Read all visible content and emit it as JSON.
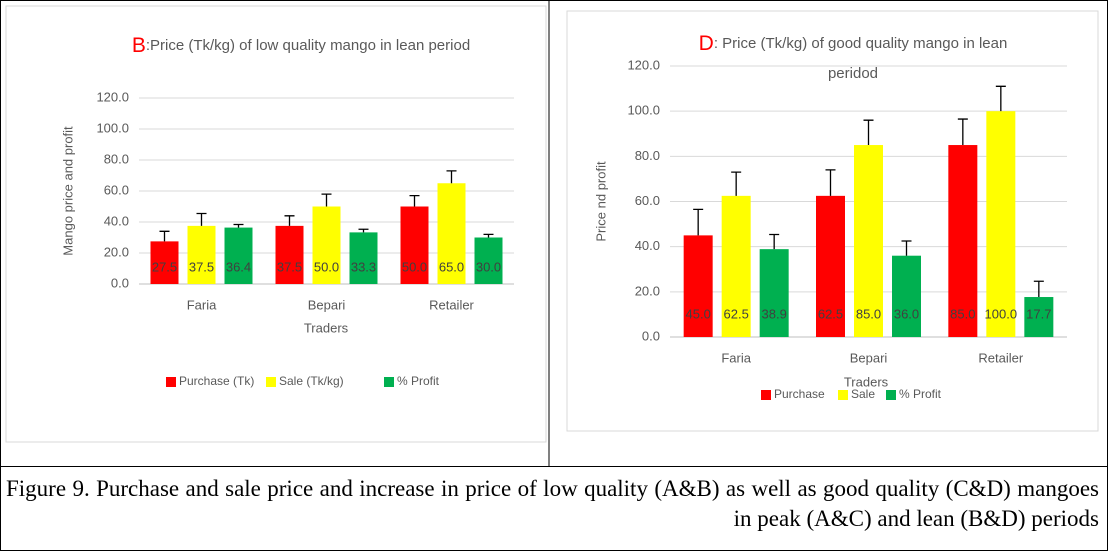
{
  "chart_data": [
    {
      "type": "bar",
      "title_letter": "B",
      "title": ":Price  (Tk/kg) of low quality mango in lean period",
      "y_label": "Mango price and profit",
      "x_label": "Traders",
      "categories": [
        "Faria",
        "Bepari",
        "Retailer"
      ],
      "series": [
        {
          "name": "Purchase (Tk)",
          "color": "#ff0000",
          "values": [
            27.5,
            37.5,
            50
          ],
          "value_labels": [
            "27.5",
            "37.5",
            "50.0"
          ],
          "errors": [
            6.5,
            6.5,
            7
          ]
        },
        {
          "name": "Sale (Tk/kg)",
          "color": "#ffff00",
          "values": [
            37.5,
            50,
            65
          ],
          "value_labels": [
            "37.5",
            "50.0",
            "65.0"
          ],
          "errors": [
            8,
            8,
            8
          ]
        },
        {
          "name": "% Profit",
          "color": "#00b050",
          "values": [
            36.4,
            33.3,
            30
          ],
          "value_labels": [
            "36.4",
            "33.3",
            "30.0"
          ],
          "errors": [
            2,
            2,
            2
          ]
        }
      ],
      "ylim": [
        0,
        120
      ],
      "yticks": [
        {
          "value": 0,
          "label": "0.0"
        },
        {
          "value": 20,
          "label": "20.0"
        },
        {
          "value": 40,
          "label": "40.0"
        },
        {
          "value": 60,
          "label": "60.0"
        },
        {
          "value": 80,
          "label": "80.0"
        },
        {
          "value": 100,
          "label": "100.0"
        },
        {
          "value": 120,
          "label": "120.0"
        }
      ],
      "grid": true,
      "legend": "bottom"
    },
    {
      "type": "bar",
      "title_letter": "D",
      "title": [
        ": Price (Tk/kg) of good quality mango in lean",
        "peridod"
      ],
      "y_label": "Price nd profit",
      "x_label": "Traders",
      "categories": [
        "Faria",
        "Bepari",
        "Retailer"
      ],
      "series": [
        {
          "name": "Purchase",
          "color": "#ff0000",
          "values": [
            45,
            62.5,
            85
          ],
          "value_labels": [
            "45.0",
            "62.5",
            "85.0"
          ],
          "errors": [
            11.5,
            11.5,
            11.5
          ]
        },
        {
          "name": "Sale",
          "color": "#ffff00",
          "values": [
            62.5,
            85,
            100
          ],
          "value_labels": [
            "62.5",
            "85.0",
            "100.0"
          ],
          "errors": [
            10.5,
            11,
            11
          ]
        },
        {
          "name": "% Profit",
          "color": "#00b050",
          "values": [
            38.9,
            36,
            17.7
          ],
          "value_labels": [
            "38.9",
            "36.0",
            "17.7"
          ],
          "errors": [
            6.5,
            6.5,
            7
          ]
        }
      ],
      "ylim": [
        0,
        120
      ],
      "yticks": [
        {
          "value": 0,
          "label": "0.0"
        },
        {
          "value": 20,
          "label": "20.0"
        },
        {
          "value": 40,
          "label": "40.0"
        },
        {
          "value": 60,
          "label": "60.0"
        },
        {
          "value": 80,
          "label": "80.0"
        },
        {
          "value": 100,
          "label": "100.0"
        },
        {
          "value": 120,
          "label": "120.0"
        }
      ],
      "grid": true,
      "legend": "bottom"
    }
  ],
  "caption": "Figure 9. Purchase and sale price and increase in price of low quality (A&B) as well as good quality (C&D) mangoes in peak (A&C) and lean (B&D) periods"
}
